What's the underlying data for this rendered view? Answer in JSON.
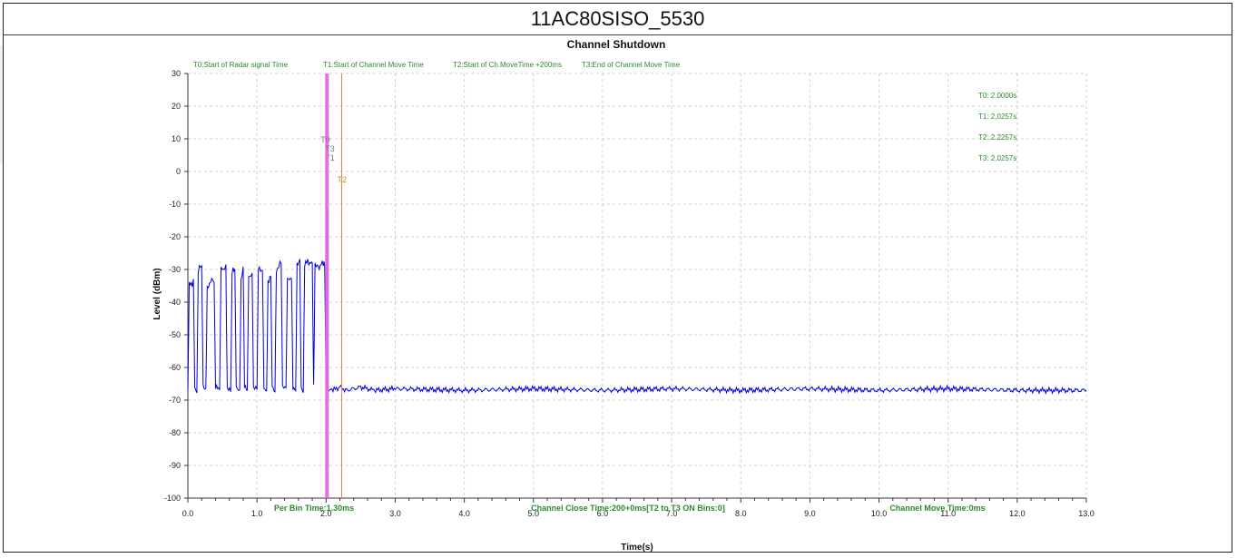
{
  "window": {
    "title": "11AC80SISO_5530"
  },
  "chart_data": {
    "type": "line",
    "title": "Channel Shutdown",
    "xlabel": "Time(s)",
    "ylabel": "Level (dBm)",
    "xlim": [
      0,
      13
    ],
    "ylim": [
      -100,
      30
    ],
    "x_ticks": [
      "0.0",
      "1.0",
      "2.0",
      "3.0",
      "4.0",
      "5.0",
      "6.0",
      "7.0",
      "8.0",
      "9.0",
      "10.0",
      "11.0",
      "12.0",
      "13.0"
    ],
    "y_ticks": [
      "30",
      "20",
      "10",
      "0",
      "-10",
      "-20",
      "-30",
      "-40",
      "-50",
      "-60",
      "-70",
      "-80",
      "-90",
      "-100"
    ],
    "grid": true,
    "legend_top": [
      "T0:Start of Radar signal Time",
      "T1:Start of Channel Move Time",
      "T2:Start of Ch.MoveTime +200ms",
      "T3:End of Channel Move Time"
    ],
    "markers": [
      {
        "label": "T0",
        "x": 2.0,
        "color": "#e070e0",
        "readout": "T0: 2.0000s"
      },
      {
        "label": "T1",
        "x": 2.0257,
        "color": "#e070e0",
        "readout": "T1: 2.0257s"
      },
      {
        "label": "T2",
        "x": 2.2257,
        "color": "#f08040",
        "readout": "T2: 2.2257s"
      },
      {
        "label": "T3",
        "x": 2.0257,
        "color": "#e070e0",
        "readout": "T3: 2.0257s"
      }
    ],
    "bottom_annotations": [
      "Per Bin Time:1.30ms",
      "Channel Close Time:200+0ms[T2 to T3 ON Bins:0]",
      "Channel Move Time:0ms"
    ],
    "series": [
      {
        "color": "#0000dd",
        "points": [
          [
            0.0,
            -67
          ],
          [
            0.02,
            -35
          ],
          [
            0.08,
            -34
          ],
          [
            0.1,
            -66
          ],
          [
            0.13,
            -67
          ],
          [
            0.15,
            -30
          ],
          [
            0.2,
            -29
          ],
          [
            0.22,
            -66
          ],
          [
            0.26,
            -67
          ],
          [
            0.28,
            -35
          ],
          [
            0.38,
            -33
          ],
          [
            0.4,
            -66
          ],
          [
            0.46,
            -67
          ],
          [
            0.48,
            -30
          ],
          [
            0.55,
            -29
          ],
          [
            0.57,
            -66
          ],
          [
            0.62,
            -67
          ],
          [
            0.64,
            -31
          ],
          [
            0.68,
            -30
          ],
          [
            0.7,
            -66
          ],
          [
            0.75,
            -67
          ],
          [
            0.77,
            -33
          ],
          [
            0.8,
            -29
          ],
          [
            0.82,
            -66
          ],
          [
            0.86,
            -67
          ],
          [
            0.88,
            -32
          ],
          [
            0.93,
            -31
          ],
          [
            0.95,
            -66
          ],
          [
            1.0,
            -67
          ],
          [
            1.02,
            -30
          ],
          [
            1.08,
            -30
          ],
          [
            1.1,
            -66
          ],
          [
            1.14,
            -67
          ],
          [
            1.16,
            -34
          ],
          [
            1.2,
            -33
          ],
          [
            1.22,
            -66
          ],
          [
            1.26,
            -67
          ],
          [
            1.28,
            -30
          ],
          [
            1.35,
            -28
          ],
          [
            1.37,
            -66
          ],
          [
            1.42,
            -67
          ],
          [
            1.44,
            -33
          ],
          [
            1.5,
            -32
          ],
          [
            1.52,
            -66
          ],
          [
            1.56,
            -67
          ],
          [
            1.58,
            -29
          ],
          [
            1.62,
            -28
          ],
          [
            1.64,
            -66
          ],
          [
            1.67,
            -67
          ],
          [
            1.69,
            -28
          ],
          [
            1.78,
            -28
          ],
          [
            1.8,
            -29
          ],
          [
            1.82,
            -66
          ],
          [
            1.84,
            -28
          ],
          [
            1.9,
            -29
          ],
          [
            1.96,
            -28
          ],
          [
            1.98,
            -29
          ],
          [
            2.0,
            -67
          ],
          [
            2.005,
            -12
          ],
          [
            2.02,
            -12
          ],
          [
            2.03,
            -67
          ],
          [
            2.1,
            -67
          ],
          [
            2.2,
            -66
          ],
          [
            2.3,
            -67
          ],
          [
            2.5,
            -66
          ],
          [
            2.7,
            -67
          ],
          [
            3.0,
            -66.5
          ],
          [
            4.0,
            -67
          ],
          [
            5.0,
            -66.5
          ],
          [
            6.0,
            -67
          ],
          [
            7.0,
            -66.5
          ],
          [
            8.0,
            -67
          ],
          [
            9.0,
            -66.5
          ],
          [
            10.0,
            -67
          ],
          [
            11.0,
            -66.5
          ],
          [
            12.0,
            -67
          ],
          [
            13.0,
            -67
          ]
        ]
      }
    ]
  }
}
